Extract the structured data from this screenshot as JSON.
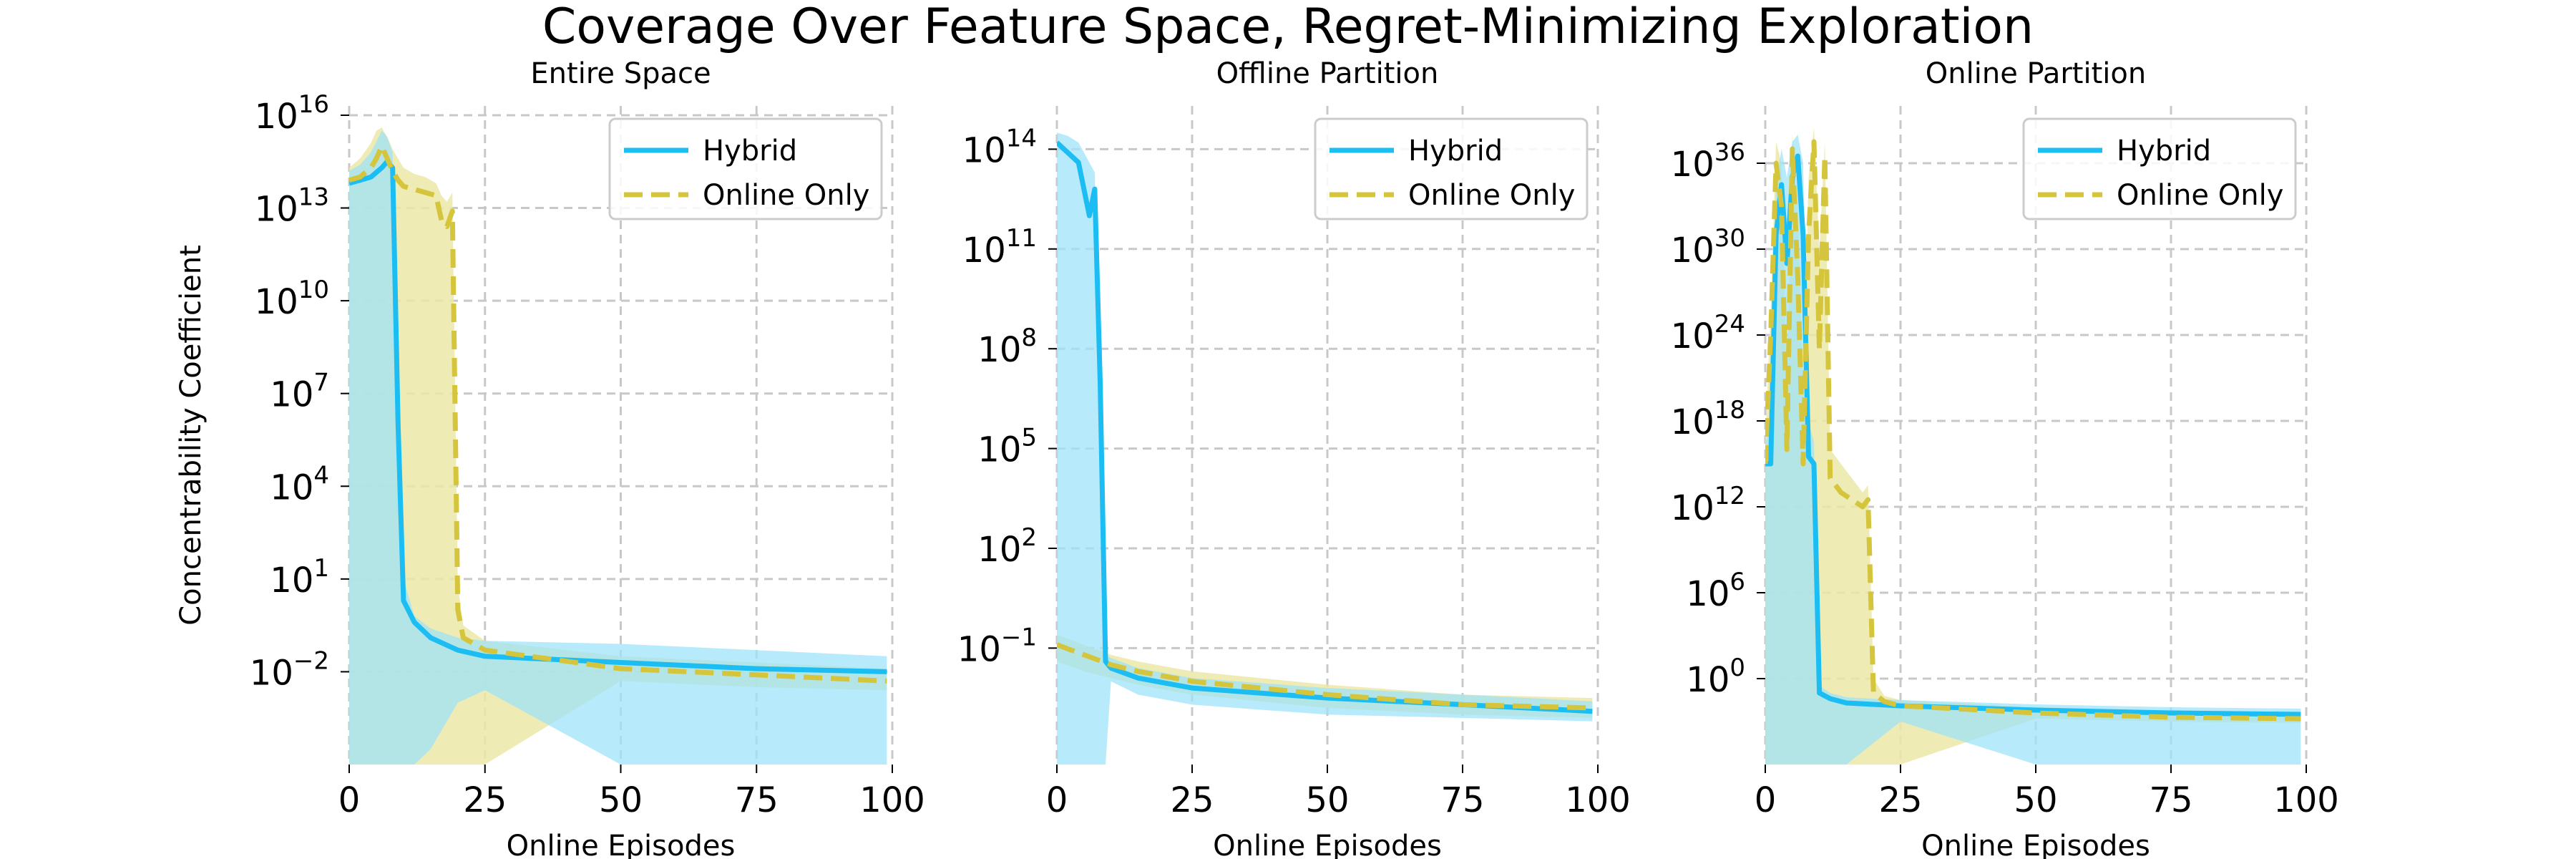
{
  "figure_title": "Coverage Over Feature Space, Regret-Minimizing Exploration",
  "colors": {
    "hybrid": "#1bbdf2",
    "hybrid_band": "#9fe3f8",
    "online": "#d4c53c",
    "online_band": "#ece7a8",
    "overlap_band": "#a9d8a8",
    "grid": "#c8c8c8"
  },
  "chart_data": [
    {
      "type": "line",
      "title": "Entire Space",
      "xlabel": "Online Episodes",
      "ylabel": "Concentrability Coefficient",
      "xlim": [
        0,
        100
      ],
      "xticks": [
        0,
        25,
        50,
        75,
        100
      ],
      "ylim_log10": [
        -5,
        16.3
      ],
      "yticks": [
        {
          "exp": 16,
          "label": "10",
          "sup": "16"
        },
        {
          "exp": 13,
          "label": "10",
          "sup": "13"
        },
        {
          "exp": 10,
          "label": "10",
          "sup": "10"
        },
        {
          "exp": 7,
          "label": "10",
          "sup": "7"
        },
        {
          "exp": 4,
          "label": "10",
          "sup": "4"
        },
        {
          "exp": 1,
          "label": "10",
          "sup": "1"
        },
        {
          "exp": -2,
          "label": "10",
          "sup": "−2"
        }
      ],
      "legend": {
        "position": "upper right",
        "entries": [
          "Hybrid",
          "Online Only"
        ]
      },
      "series": [
        {
          "name": "Hybrid",
          "style": "solid",
          "x": [
            0,
            2,
            4,
            6,
            7,
            8,
            9,
            10,
            12,
            15,
            20,
            25,
            50,
            75,
            99
          ],
          "log10_y": [
            13.8,
            13.9,
            14.0,
            14.3,
            14.5,
            14.3,
            6.0,
            0.3,
            -0.4,
            -0.9,
            -1.3,
            -1.5,
            -1.7,
            -1.9,
            -2.0
          ],
          "band_lower_log10": [
            -5,
            -5,
            -5,
            -5,
            -5,
            -5,
            -5,
            -5,
            -5,
            -4.5,
            -3.0,
            -2.6,
            -5,
            -5,
            -5
          ],
          "band_upper_log10": [
            14.2,
            14.4,
            14.8,
            15.5,
            15.3,
            14.8,
            7.0,
            1.0,
            -0.2,
            -0.6,
            -0.9,
            -1.0,
            -1.1,
            -1.3,
            -1.5
          ]
        },
        {
          "name": "Online Only",
          "style": "dashed",
          "x": [
            0,
            2,
            4,
            5,
            6,
            7,
            8,
            9,
            10,
            12,
            14,
            16,
            17,
            18,
            19,
            20,
            21,
            25,
            50,
            75,
            99
          ],
          "log10_y": [
            13.9,
            14.0,
            14.3,
            14.6,
            15.0,
            14.6,
            14.2,
            13.9,
            13.7,
            13.6,
            13.5,
            13.4,
            12.6,
            12.4,
            12.9,
            0.0,
            -0.9,
            -1.3,
            -1.9,
            -2.1,
            -2.3
          ],
          "band_lower_log10": [
            -5,
            -5,
            -5,
            -5,
            -5,
            -5,
            -5,
            -5,
            -5,
            -5,
            -5,
            -5,
            -5,
            -5,
            -5,
            -5,
            -5,
            -5,
            -2.3,
            -2.5,
            -2.6
          ],
          "band_upper_log10": [
            14.3,
            14.6,
            15.1,
            15.5,
            15.6,
            15.3,
            14.9,
            14.6,
            14.3,
            14.1,
            14.0,
            13.8,
            13.4,
            13.2,
            13.5,
            0.8,
            -0.5,
            -1.0,
            -1.5,
            -1.7,
            -1.9
          ]
        }
      ]
    },
    {
      "type": "line",
      "title": "Offline Partition",
      "xlabel": "Online Episodes",
      "ylabel": "",
      "xlim": [
        0,
        100
      ],
      "xticks": [
        0,
        25,
        50,
        75,
        100
      ],
      "ylim_log10": [
        -4.5,
        15.3
      ],
      "yticks": [
        {
          "exp": 14,
          "label": "10",
          "sup": "14"
        },
        {
          "exp": 11,
          "label": "10",
          "sup": "11"
        },
        {
          "exp": 8,
          "label": "10",
          "sup": "8"
        },
        {
          "exp": 5,
          "label": "10",
          "sup": "5"
        },
        {
          "exp": 2,
          "label": "10",
          "sup": "2"
        },
        {
          "exp": -1,
          "label": "10",
          "sup": "−1"
        }
      ],
      "legend": {
        "position": "upper right",
        "entries": [
          "Hybrid",
          "Online Only"
        ]
      },
      "series": [
        {
          "name": "Hybrid",
          "style": "solid",
          "x": [
            0,
            2,
            4,
            6,
            7,
            8,
            9,
            10,
            15,
            25,
            50,
            75,
            99
          ],
          "log10_y": [
            14.2,
            13.9,
            13.6,
            12.0,
            12.8,
            7.0,
            -1.4,
            -1.6,
            -1.9,
            -2.2,
            -2.5,
            -2.7,
            -2.9
          ],
          "band_lower_log10": [
            -4.5,
            -4.5,
            -4.5,
            -4.5,
            -4.5,
            -4.5,
            -4.5,
            -2.0,
            -2.4,
            -2.7,
            -3.0,
            -3.1,
            -3.2
          ],
          "band_upper_log10": [
            14.5,
            14.4,
            14.2,
            13.6,
            13.3,
            7.8,
            -1.2,
            -1.3,
            -1.6,
            -1.9,
            -2.2,
            -2.4,
            -2.6
          ]
        },
        {
          "name": "Online Only",
          "style": "dashed",
          "x": [
            0,
            5,
            10,
            15,
            25,
            50,
            75,
            99
          ],
          "log10_y": [
            -0.9,
            -1.2,
            -1.5,
            -1.7,
            -2.0,
            -2.4,
            -2.7,
            -2.8
          ],
          "band_lower_log10": [
            -1.4,
            -1.7,
            -1.9,
            -2.1,
            -2.4,
            -2.8,
            -3.0,
            -3.1
          ],
          "band_upper_log10": [
            -0.6,
            -0.9,
            -1.2,
            -1.4,
            -1.7,
            -2.1,
            -2.4,
            -2.5
          ]
        }
      ]
    },
    {
      "type": "line",
      "title": "Online Partition",
      "xlabel": "Online Episodes",
      "ylabel": "",
      "xlim": [
        0,
        100
      ],
      "xticks": [
        0,
        25,
        50,
        75,
        100
      ],
      "ylim_log10": [
        -6,
        40
      ],
      "yticks": [
        {
          "exp": 36,
          "label": "10",
          "sup": "36"
        },
        {
          "exp": 30,
          "label": "10",
          "sup": "30"
        },
        {
          "exp": 24,
          "label": "10",
          "sup": "24"
        },
        {
          "exp": 18,
          "label": "10",
          "sup": "18"
        },
        {
          "exp": 12,
          "label": "10",
          "sup": "12"
        },
        {
          "exp": 6,
          "label": "10",
          "sup": "6"
        },
        {
          "exp": 0,
          "label": "10",
          "sup": "0"
        }
      ],
      "legend": {
        "position": "upper right",
        "entries": [
          "Hybrid",
          "Online Only"
        ]
      },
      "series": [
        {
          "name": "Hybrid",
          "style": "solid",
          "x": [
            0,
            1,
            2,
            3,
            4,
            5,
            6,
            7,
            8,
            9,
            10,
            12,
            15,
            25,
            50,
            75,
            99
          ],
          "log10_y": [
            15.0,
            15.0,
            31.0,
            34.5,
            29.0,
            35.0,
            36.5,
            31.0,
            15.5,
            15.0,
            -1.0,
            -1.4,
            -1.7,
            -1.9,
            -2.2,
            -2.4,
            -2.5
          ],
          "band_lower_log10": [
            -6,
            -6,
            -6,
            -6,
            -6,
            -6,
            -6,
            -6,
            -6,
            -6,
            -6,
            -6,
            -6,
            -3.0,
            -6,
            -6,
            -6
          ],
          "band_upper_log10": [
            16.5,
            17.5,
            34.5,
            37.0,
            35.0,
            37.5,
            38.0,
            36.0,
            18.0,
            16.5,
            -0.5,
            -1.0,
            -1.3,
            -1.5,
            -1.8,
            -2.0,
            -2.1
          ]
        },
        {
          "name": "Online Only",
          "style": "dashed",
          "x": [
            0,
            1,
            2,
            3,
            4,
            5,
            6,
            7,
            8,
            9,
            10,
            11,
            12,
            14,
            16,
            18,
            19,
            20,
            22,
            25,
            50,
            75,
            99
          ],
          "log10_y": [
            15.0,
            24.0,
            36.0,
            33.0,
            16.0,
            37.0,
            28.0,
            15.0,
            31.0,
            37.5,
            23.0,
            36.5,
            14.0,
            13.0,
            12.5,
            12.0,
            12.5,
            -1.0,
            -1.6,
            -1.9,
            -2.4,
            -2.7,
            -2.8
          ],
          "band_lower_log10": [
            -6,
            -6,
            -6,
            -6,
            -6,
            -6,
            -6,
            -6,
            -6,
            -6,
            -6,
            -6,
            -6,
            -6,
            -6,
            -6,
            -6,
            -6,
            -6,
            -6,
            -2.8,
            -3.0,
            -3.1
          ],
          "band_upper_log10": [
            16.5,
            26.0,
            37.5,
            36.0,
            20.0,
            38.0,
            33.0,
            20.0,
            35.0,
            38.5,
            30.0,
            37.5,
            16.0,
            15.0,
            14.0,
            13.0,
            13.5,
            0.0,
            -1.2,
            -1.5,
            -2.0,
            -2.3,
            -2.4
          ]
        }
      ]
    }
  ]
}
